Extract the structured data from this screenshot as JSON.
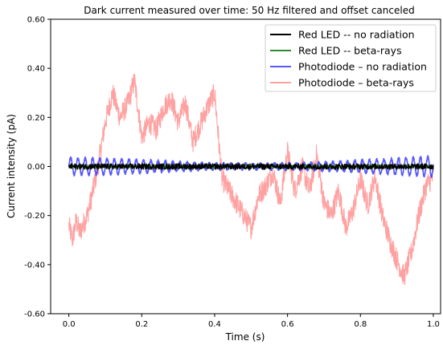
{
  "chart_data": {
    "type": "line",
    "title": "Dark current measured over time: 50 Hz filtered and offset canceled",
    "xlabel": "Time (s)",
    "ylabel": "Current intensity (pA)",
    "xlim": [
      -0.05,
      1.02
    ],
    "ylim": [
      -0.6,
      0.6
    ],
    "x_ticks": [
      0.0,
      0.2,
      0.4,
      0.6,
      0.8,
      1.0
    ],
    "x_tick_labels": [
      "0.0",
      "0.2",
      "0.4",
      "0.6",
      "0.8",
      "1.0"
    ],
    "y_ticks": [
      -0.6,
      -0.4,
      -0.2,
      0.0,
      0.2,
      0.4,
      0.6
    ],
    "y_tick_labels": [
      "-0.60",
      "-0.40",
      "-0.20",
      "0.00",
      "0.20",
      "0.40",
      "0.60"
    ],
    "grid": false,
    "legend_position": "top-right",
    "series": [
      {
        "name": "Photodiode – beta-rays",
        "color": "#ff8a8a",
        "opacity": 0.8,
        "style": "noisy",
        "x": [
          0.0,
          0.01,
          0.02,
          0.03,
          0.05,
          0.06,
          0.08,
          0.1,
          0.12,
          0.14,
          0.16,
          0.18,
          0.2,
          0.22,
          0.24,
          0.26,
          0.28,
          0.3,
          0.32,
          0.34,
          0.36,
          0.38,
          0.4,
          0.42,
          0.44,
          0.46,
          0.48,
          0.5,
          0.52,
          0.54,
          0.56,
          0.58,
          0.6,
          0.62,
          0.64,
          0.66,
          0.68,
          0.7,
          0.72,
          0.74,
          0.76,
          0.78,
          0.8,
          0.82,
          0.84,
          0.86,
          0.88,
          0.9,
          0.92,
          0.94,
          0.96,
          0.98,
          1.0
        ],
        "y": [
          -0.24,
          -0.3,
          -0.22,
          -0.27,
          -0.2,
          -0.14,
          0.0,
          0.18,
          0.3,
          0.2,
          0.25,
          0.35,
          0.12,
          0.18,
          0.15,
          0.24,
          0.28,
          0.18,
          0.26,
          0.1,
          0.17,
          0.24,
          0.3,
          -0.05,
          -0.1,
          -0.15,
          -0.2,
          -0.25,
          -0.12,
          -0.08,
          -0.02,
          -0.15,
          0.06,
          -0.1,
          0.0,
          -0.1,
          0.05,
          -0.15,
          -0.2,
          -0.1,
          -0.25,
          -0.18,
          -0.05,
          -0.16,
          -0.04,
          -0.2,
          -0.3,
          -0.38,
          -0.45,
          -0.35,
          -0.2,
          -0.08,
          -0.04
        ]
      },
      {
        "name": "Photodiode – no radiation",
        "color": "#3b3bff",
        "opacity": 0.85,
        "style": "oscillation",
        "amplitude": [
          0.035,
          0.03,
          0.022,
          0.012,
          0.01,
          0.012,
          0.02,
          0.03,
          0.04
        ],
        "cycles": 50
      },
      {
        "name": "Red LED -- beta-rays",
        "color": "#2e8b2e",
        "opacity": 1,
        "style": "flat",
        "amplitude": 0.008
      },
      {
        "name": "Red LED -- no radiation",
        "color": "#000000",
        "opacity": 1,
        "style": "flat",
        "amplitude": 0.012
      }
    ]
  }
}
